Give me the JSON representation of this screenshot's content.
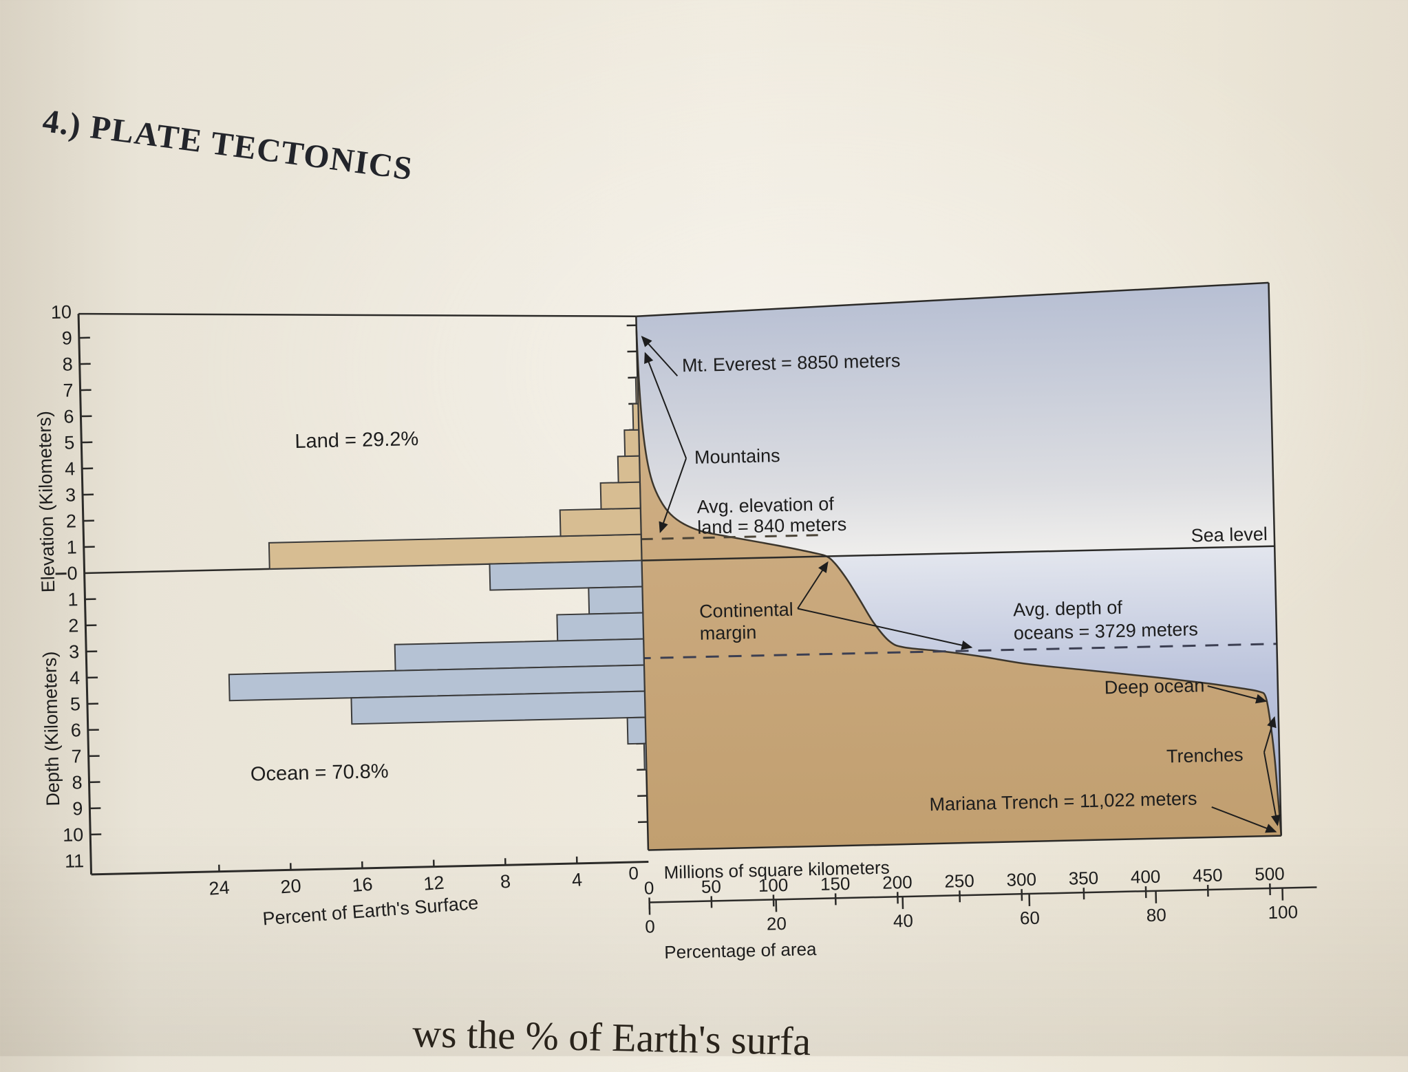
{
  "page": {
    "title": "4.) PLATE TECTONICS",
    "bottom_text_fragment": "ws the % of Earth's surfa"
  },
  "figure": {
    "land_label": "Land = 29.2%",
    "ocean_label": "Ocean = 70.8%",
    "elevation_axis_label": "Elevation (Kilometers)",
    "depth_axis_label": "Depth (Kilometers)",
    "percent_axis_label": "Percent of Earth's Surface",
    "percent_axis_zero": "0",
    "millions_axis_zero": "0",
    "percentage_axis_zero": "0",
    "millions_axis_label": "Millions of square kilometers",
    "percentage_axis_label": "Percentage of area",
    "sea_level_label": "Sea level",
    "annotations": {
      "everest": "Mt. Everest = 8850 meters",
      "mountains": "Mountains",
      "avg_land_1": "Avg. elevation of",
      "avg_land_2": "land = 840 meters",
      "continental_1": "Continental",
      "continental_2": "margin",
      "avg_depth_1": "Avg. depth of",
      "avg_depth_2": "oceans = 3729 meters",
      "deep_ocean": "Deep ocean",
      "trenches": "Trenches",
      "mariana": "Mariana Trench = 11,022 meters"
    }
  },
  "chart_data": {
    "type": "bar",
    "title": "Hypsographic curve: distribution of Earth's surface elevations and depths",
    "xlabel_left": "Percent of Earth's Surface",
    "xlabel_right_1": "Millions of square kilometers",
    "xlabel_right_2": "Percentage of area",
    "ylabel_top": "Elevation (Kilometers)",
    "ylabel_bottom": "Depth (Kilometers)",
    "elevation_tick_labels": [
      10,
      9,
      8,
      7,
      6,
      5,
      4,
      3,
      2,
      1,
      0
    ],
    "depth_tick_labels": [
      1,
      2,
      3,
      4,
      5,
      6,
      7,
      8,
      9,
      10,
      11
    ],
    "percent_ticks": [
      24,
      20,
      16,
      12,
      8,
      4
    ],
    "millions_ticks": [
      0,
      50,
      100,
      150,
      200,
      250,
      300,
      350,
      400,
      450,
      500
    ],
    "percentage_ticks": [
      0,
      20,
      40,
      60,
      80,
      100
    ],
    "histogram": {
      "elevation_bins_km": [
        "0-1",
        "1-2",
        "2-3",
        "3-4",
        "4-5",
        "5-6",
        "6-7"
      ],
      "elevation_percent_of_surface": [
        20.8,
        4.5,
        2.2,
        1.2,
        0.8,
        0.3,
        0.1
      ],
      "depth_bins_km": [
        "0-1",
        "1-2",
        "2-3",
        "3-4",
        "4-5",
        "5-6",
        "6-7",
        "7-8"
      ],
      "depth_percent_of_surface": [
        8.5,
        3.0,
        4.8,
        13.9,
        23.2,
        16.4,
        1.0,
        0.1
      ]
    },
    "curve": {
      "x_units": "millions of square kilometers (cumulative area)",
      "y_units": "elevation in kilometers (negative = depth)",
      "points": [
        [
          0,
          8.85
        ],
        [
          1,
          7.0
        ],
        [
          3,
          5.2
        ],
        [
          6,
          3.9
        ],
        [
          10,
          3.0
        ],
        [
          16,
          2.3
        ],
        [
          24,
          1.75
        ],
        [
          35,
          1.35
        ],
        [
          50,
          1.05
        ],
        [
          70,
          0.84
        ],
        [
          95,
          0.6
        ],
        [
          120,
          0.35
        ],
        [
          138,
          0.15
        ],
        [
          149,
          0
        ],
        [
          156,
          -0.3
        ],
        [
          165,
          -0.9
        ],
        [
          175,
          -1.7
        ],
        [
          186,
          -2.6
        ],
        [
          198,
          -3.3
        ],
        [
          210,
          -3.55
        ],
        [
          240,
          -3.729
        ],
        [
          270,
          -3.95
        ],
        [
          310,
          -4.3
        ],
        [
          360,
          -4.6
        ],
        [
          410,
          -4.9
        ],
        [
          455,
          -5.2
        ],
        [
          480,
          -5.4
        ],
        [
          495,
          -5.55
        ],
        [
          500,
          -5.75
        ],
        [
          503,
          -6.6
        ],
        [
          506,
          -8.0
        ],
        [
          508,
          -9.5
        ],
        [
          510,
          -11.022
        ]
      ]
    },
    "key_values": {
      "land_percent": 29.2,
      "ocean_percent": 70.8,
      "mt_everest_m": 8850,
      "avg_land_elevation_m": 840,
      "avg_ocean_depth_m": 3729,
      "mariana_trench_m": 11022,
      "total_area_million_km2": 510
    },
    "colors": {
      "land_fill": "#c9a87c",
      "elevation_bar": "#d7bd92",
      "depth_bar": "#b5c2d4",
      "water_deep": "#9fabcd",
      "water_shallow": "#e3e6ee",
      "sky_top": "#b7bfd3",
      "line": "#2b2a28"
    }
  }
}
